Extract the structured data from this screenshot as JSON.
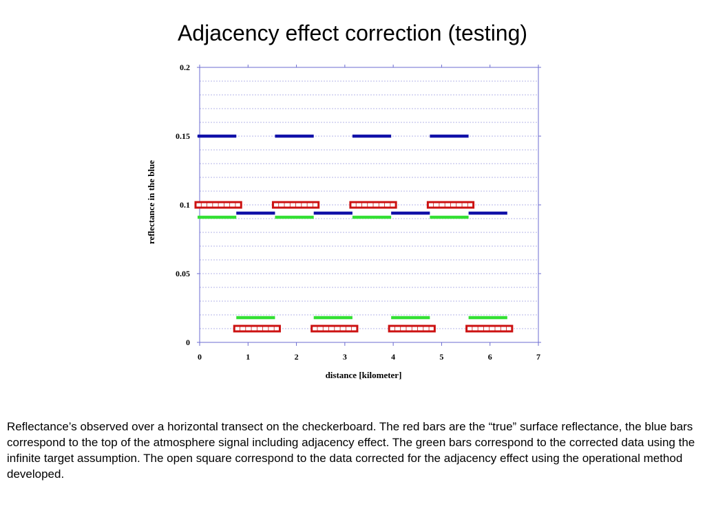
{
  "slide": {
    "title": "Adjacency effect correction (testing)",
    "caption": "Reflectance’s observed over a horizontal transect on the checkerboard. The red bars are the “true” surface reflectance, the blue bars correspond to the top of the atmosphere signal including adjacency effect. The green bars correspond to the corrected data using the infinite target assumption. The open square correspond to the data corrected for the adjacency effect using the operational method developed."
  },
  "chart_data": {
    "type": "line",
    "title": "",
    "xlabel": "distance [kilometer]",
    "ylabel": "reflectance in the blue",
    "xlim": [
      0,
      7
    ],
    "ylim": [
      0,
      0.2
    ],
    "xticks": [
      "0",
      "1",
      "2",
      "3",
      "4",
      "5",
      "6",
      "7"
    ],
    "yticks": [
      "0",
      "0.05",
      "0.1",
      "0.15",
      "0.2"
    ],
    "grid": "horizontal dashed",
    "series": [
      {
        "color": "#1010a8",
        "style": "solid-bar",
        "segments": [
          {
            "x": [
              0.0,
              0.8
            ],
            "y": 0.15
          },
          {
            "x": [
              1.6,
              2.4
            ],
            "y": 0.15
          },
          {
            "x": [
              3.2,
              4.0
            ],
            "y": 0.15
          },
          {
            "x": [
              4.8,
              5.6
            ],
            "y": 0.15
          },
          {
            "x": [
              0.8,
              1.6
            ],
            "y": 0.094
          },
          {
            "x": [
              2.4,
              3.2
            ],
            "y": 0.094
          },
          {
            "x": [
              4.0,
              4.8
            ],
            "y": 0.094
          },
          {
            "x": [
              5.6,
              6.4
            ],
            "y": 0.094
          }
        ]
      },
      {
        "color": "#33e033",
        "style": "solid-bar",
        "segments": [
          {
            "x": [
              0.0,
              0.8
            ],
            "y": 0.091
          },
          {
            "x": [
              1.6,
              2.4
            ],
            "y": 0.091
          },
          {
            "x": [
              3.2,
              4.0
            ],
            "y": 0.091
          },
          {
            "x": [
              4.8,
              5.6
            ],
            "y": 0.091
          },
          {
            "x": [
              0.8,
              1.6
            ],
            "y": 0.018
          },
          {
            "x": [
              2.4,
              3.2
            ],
            "y": 0.018
          },
          {
            "x": [
              4.0,
              4.8
            ],
            "y": 0.018
          },
          {
            "x": [
              5.6,
              6.4
            ],
            "y": 0.018
          }
        ]
      },
      {
        "color": "#cc1111",
        "style": "open-square-bar",
        "segments": [
          {
            "x": [
              0.0,
              0.8
            ],
            "y": 0.1
          },
          {
            "x": [
              1.6,
              2.4
            ],
            "y": 0.1
          },
          {
            "x": [
              3.2,
              4.0
            ],
            "y": 0.1
          },
          {
            "x": [
              4.8,
              5.6
            ],
            "y": 0.1
          },
          {
            "x": [
              0.8,
              1.6
            ],
            "y": 0.01
          },
          {
            "x": [
              2.4,
              3.2
            ],
            "y": 0.01
          },
          {
            "x": [
              4.0,
              4.8
            ],
            "y": 0.01
          },
          {
            "x": [
              5.6,
              6.4
            ],
            "y": 0.01
          }
        ]
      }
    ]
  }
}
